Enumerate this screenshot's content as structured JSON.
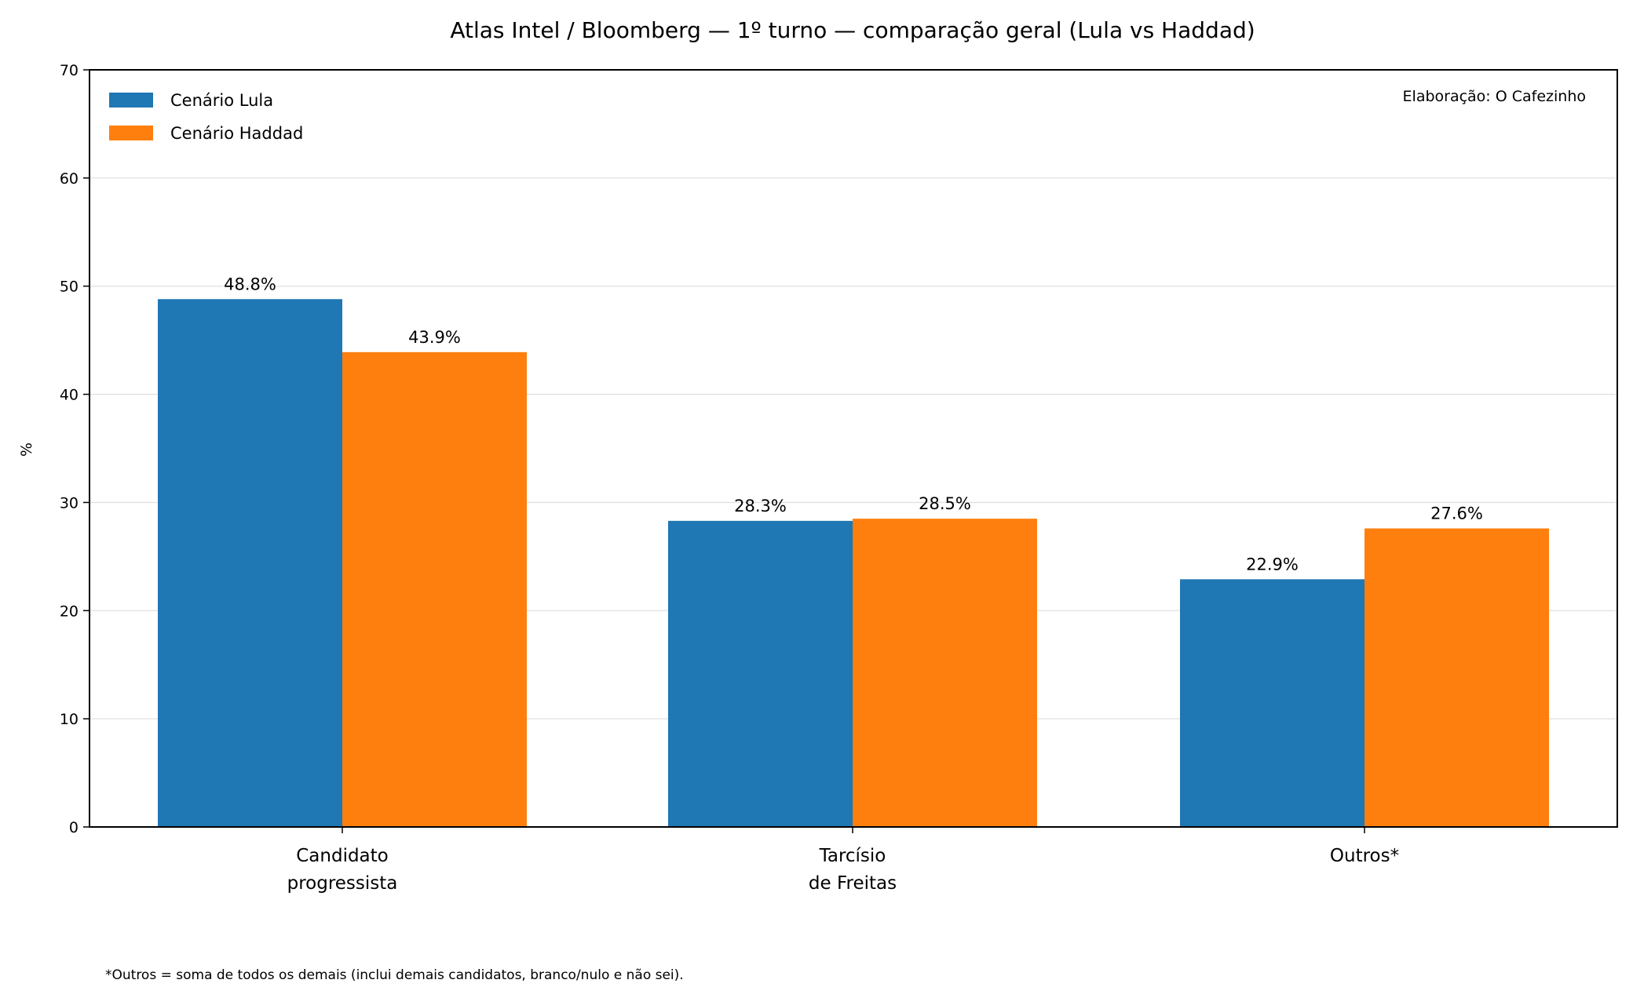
{
  "chart_data": {
    "type": "bar",
    "title": "Atlas Intel / Bloomberg — 1º turno — comparação geral (Lula vs Haddad)",
    "xlabel": "",
    "ylabel": "%",
    "ylim": [
      0,
      70
    ],
    "yticks": [
      0,
      10,
      20,
      30,
      40,
      50,
      60,
      70
    ],
    "grid": "horizontal",
    "legend_position": "top-left",
    "categories": [
      [
        "Candidato",
        "progressista"
      ],
      [
        "Tarcísio",
        "de Freitas"
      ],
      [
        "Outros*"
      ]
    ],
    "series": [
      {
        "name": "Cenário Lula",
        "color": "#1f77b4",
        "values": [
          48.8,
          28.3,
          22.9
        ],
        "labels": [
          "48.8%",
          "28.3%",
          "22.9%"
        ]
      },
      {
        "name": "Cenário Haddad",
        "color": "#ff7f0e",
        "values": [
          43.9,
          28.5,
          27.6
        ],
        "labels": [
          "43.9%",
          "28.5%",
          "27.6%"
        ]
      }
    ],
    "annotation": "Elaboração: O Cafezinho",
    "footnote": "*Outros = soma de todos os demais (inclui demais candidatos, branco/nulo e não sei)."
  }
}
